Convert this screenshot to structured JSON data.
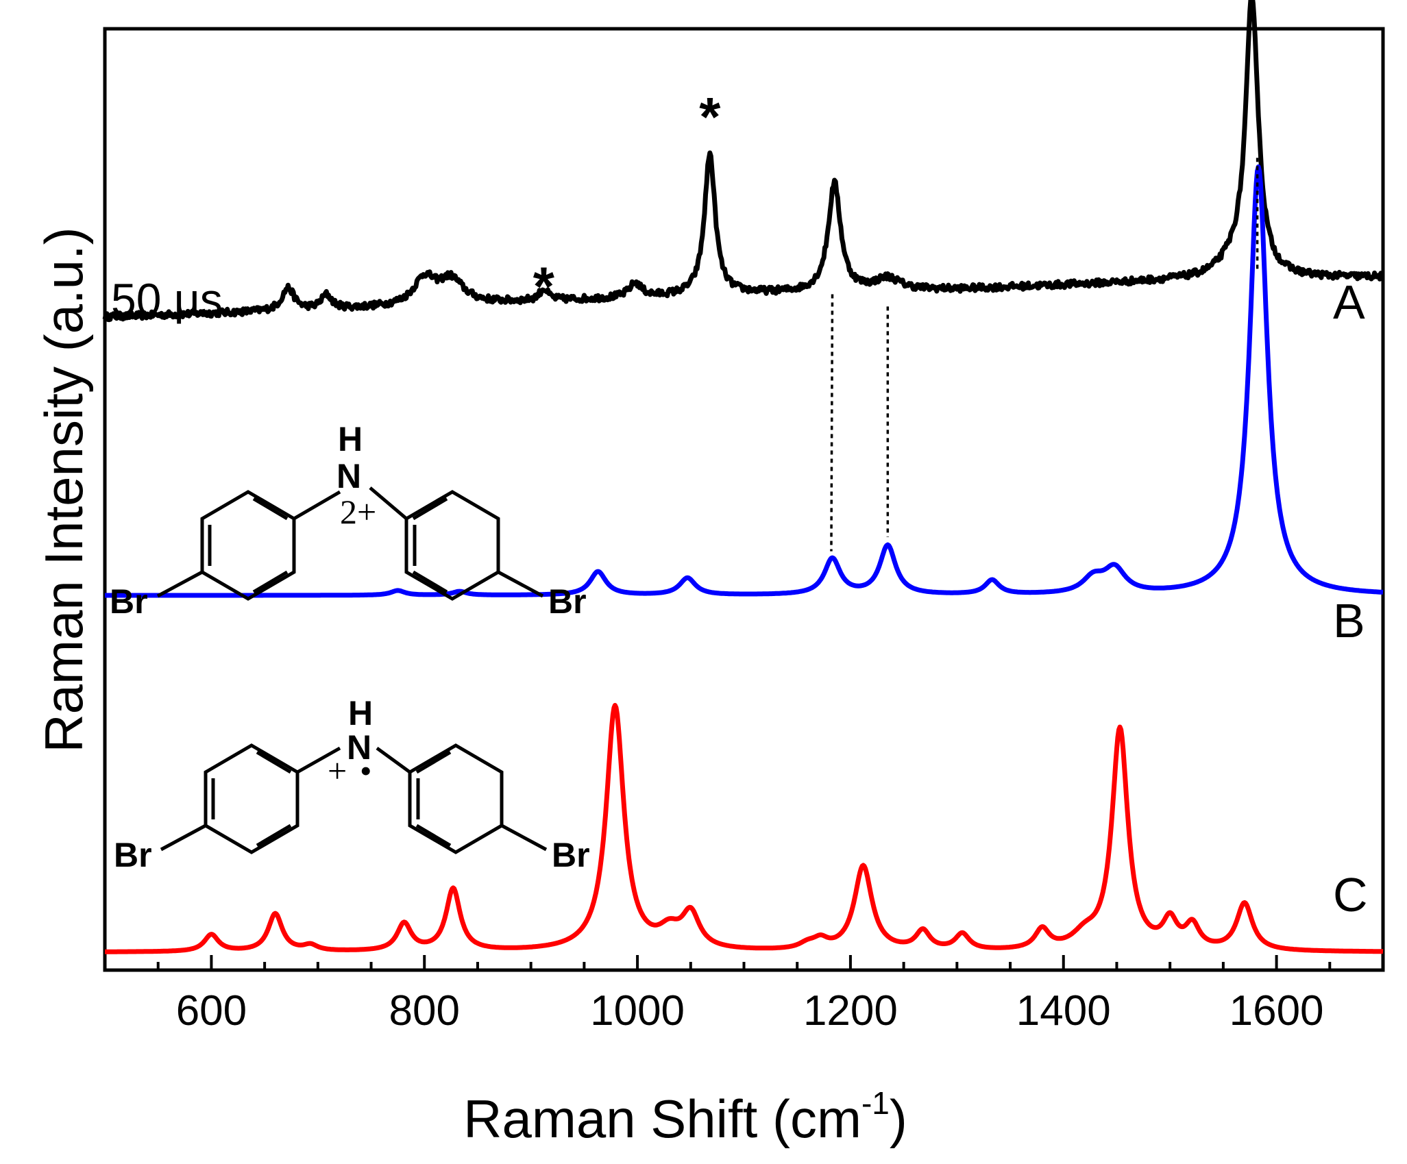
{
  "chart_data": {
    "type": "line",
    "title": "",
    "xlabel": "Raman Shift (cm",
    "xlabel_superscript": "-1",
    "xlabel_close": ")",
    "ylabel": "Raman Intensity (a.u.)",
    "xlim": [
      500,
      1700
    ],
    "ylim": [
      0,
      100
    ],
    "y_ticks_shown": false,
    "x_ticks": [
      600,
      800,
      1000,
      1200,
      1400,
      1600
    ],
    "x_tick_labels": [
      "600",
      "800",
      "1000",
      "1200",
      "1400",
      "1600"
    ],
    "x_minor_tick_step": 50,
    "time_label": "50 μs",
    "colors": {
      "A": "#000000",
      "B": "#0000ff",
      "C": "#ff0000"
    },
    "series": [
      {
        "name": "A",
        "label": "A",
        "color": "#000000",
        "baseline": [
          [
            500,
            69.4
          ],
          [
            700,
            70.1
          ],
          [
            900,
            71.0
          ],
          [
            1100,
            71.8
          ],
          [
            1300,
            72.3
          ],
          [
            1500,
            73.2
          ],
          [
            1700,
            73.6
          ]
        ],
        "noise": 0.35,
        "peaks": [
          {
            "center": 672,
            "height": 2.4,
            "width": 7
          },
          {
            "center": 708,
            "height": 1.5,
            "width": 6
          },
          {
            "center": 800,
            "height": 2.8,
            "width": 12
          },
          {
            "center": 825,
            "height": 2.6,
            "width": 14
          },
          {
            "center": 912,
            "height": 1.2,
            "width": 5
          },
          {
            "center": 998,
            "height": 1.5,
            "width": 7
          },
          {
            "center": 1068,
            "height": 15.0,
            "width": 6
          },
          {
            "center": 1185,
            "height": 11.5,
            "width": 7
          },
          {
            "center": 1235,
            "height": 1.3,
            "width": 14
          },
          {
            "center": 1560,
            "height": 1.5,
            "width": 18
          },
          {
            "center": 1577,
            "height": 29.5,
            "width": 7
          }
        ]
      },
      {
        "name": "B",
        "label": "B",
        "color": "#0000ff",
        "baseline": [
          [
            500,
            39.8
          ],
          [
            1700,
            39.8
          ]
        ],
        "noise": 0,
        "peaks": [
          {
            "center": 775,
            "height": 0.5,
            "width": 8
          },
          {
            "center": 833,
            "height": 0.4,
            "width": 8
          },
          {
            "center": 963,
            "height": 2.5,
            "width": 9
          },
          {
            "center": 1047,
            "height": 1.8,
            "width": 9
          },
          {
            "center": 1183,
            "height": 3.8,
            "width": 9
          },
          {
            "center": 1235,
            "height": 5.2,
            "width": 9
          },
          {
            "center": 1333,
            "height": 1.5,
            "width": 8
          },
          {
            "center": 1428,
            "height": 1.6,
            "width": 12
          },
          {
            "center": 1448,
            "height": 2.6,
            "width": 12
          },
          {
            "center": 1583,
            "height": 45.5,
            "width": 10
          }
        ]
      },
      {
        "name": "C",
        "label": "C",
        "color": "#ff0000",
        "baseline": [
          [
            500,
            1.9
          ],
          [
            1700,
            1.9
          ]
        ],
        "noise": 0,
        "peaks": [
          {
            "center": 600,
            "height": 1.8,
            "width": 8
          },
          {
            "center": 660,
            "height": 4.0,
            "width": 8
          },
          {
            "center": 693,
            "height": 0.6,
            "width": 8
          },
          {
            "center": 781,
            "height": 2.9,
            "width": 8
          },
          {
            "center": 827,
            "height": 6.6,
            "width": 8
          },
          {
            "center": 979,
            "height": 26.0,
            "width": 10
          },
          {
            "center": 1030,
            "height": 1.8,
            "width": 12
          },
          {
            "center": 1050,
            "height": 3.7,
            "width": 10
          },
          {
            "center": 1160,
            "height": 0.6,
            "width": 10
          },
          {
            "center": 1172,
            "height": 0.9,
            "width": 8
          },
          {
            "center": 1212,
            "height": 9.0,
            "width": 10
          },
          {
            "center": 1268,
            "height": 2.0,
            "width": 8
          },
          {
            "center": 1305,
            "height": 1.7,
            "width": 8
          },
          {
            "center": 1380,
            "height": 2.1,
            "width": 8
          },
          {
            "center": 1420,
            "height": 1.4,
            "width": 14
          },
          {
            "center": 1453,
            "height": 23.5,
            "width": 9
          },
          {
            "center": 1500,
            "height": 2.9,
            "width": 8
          },
          {
            "center": 1521,
            "height": 2.5,
            "width": 8
          },
          {
            "center": 1570,
            "height": 5.0,
            "width": 9
          }
        ]
      }
    ],
    "annotations": [
      {
        "type": "star",
        "text": "*",
        "x": 1068,
        "y": 93.0
      },
      {
        "type": "star",
        "text": "*",
        "x": 912,
        "y": 75.0
      },
      {
        "type": "dotted_link",
        "x_from": 1183,
        "y_from": 71.8,
        "x_to": 1182,
        "y_to": 44.5
      },
      {
        "type": "dotted_link",
        "x_from": 1235,
        "y_from": 70.5,
        "x_to": 1235,
        "y_to": 46.0
      },
      {
        "type": "dotted_link",
        "x_from": 1582,
        "y_from": 74.5,
        "x_to": 1582,
        "y_to": 86.5
      }
    ],
    "molecules": [
      {
        "name": "dication",
        "H": "H",
        "N": "N",
        "charge": "2+",
        "Br_left": "Br",
        "Br_right": "Br"
      },
      {
        "name": "radical-cation",
        "H": "H",
        "N": "N",
        "charge": "+",
        "radical": "•",
        "Br_left": "Br",
        "Br_right": "Br"
      }
    ]
  }
}
